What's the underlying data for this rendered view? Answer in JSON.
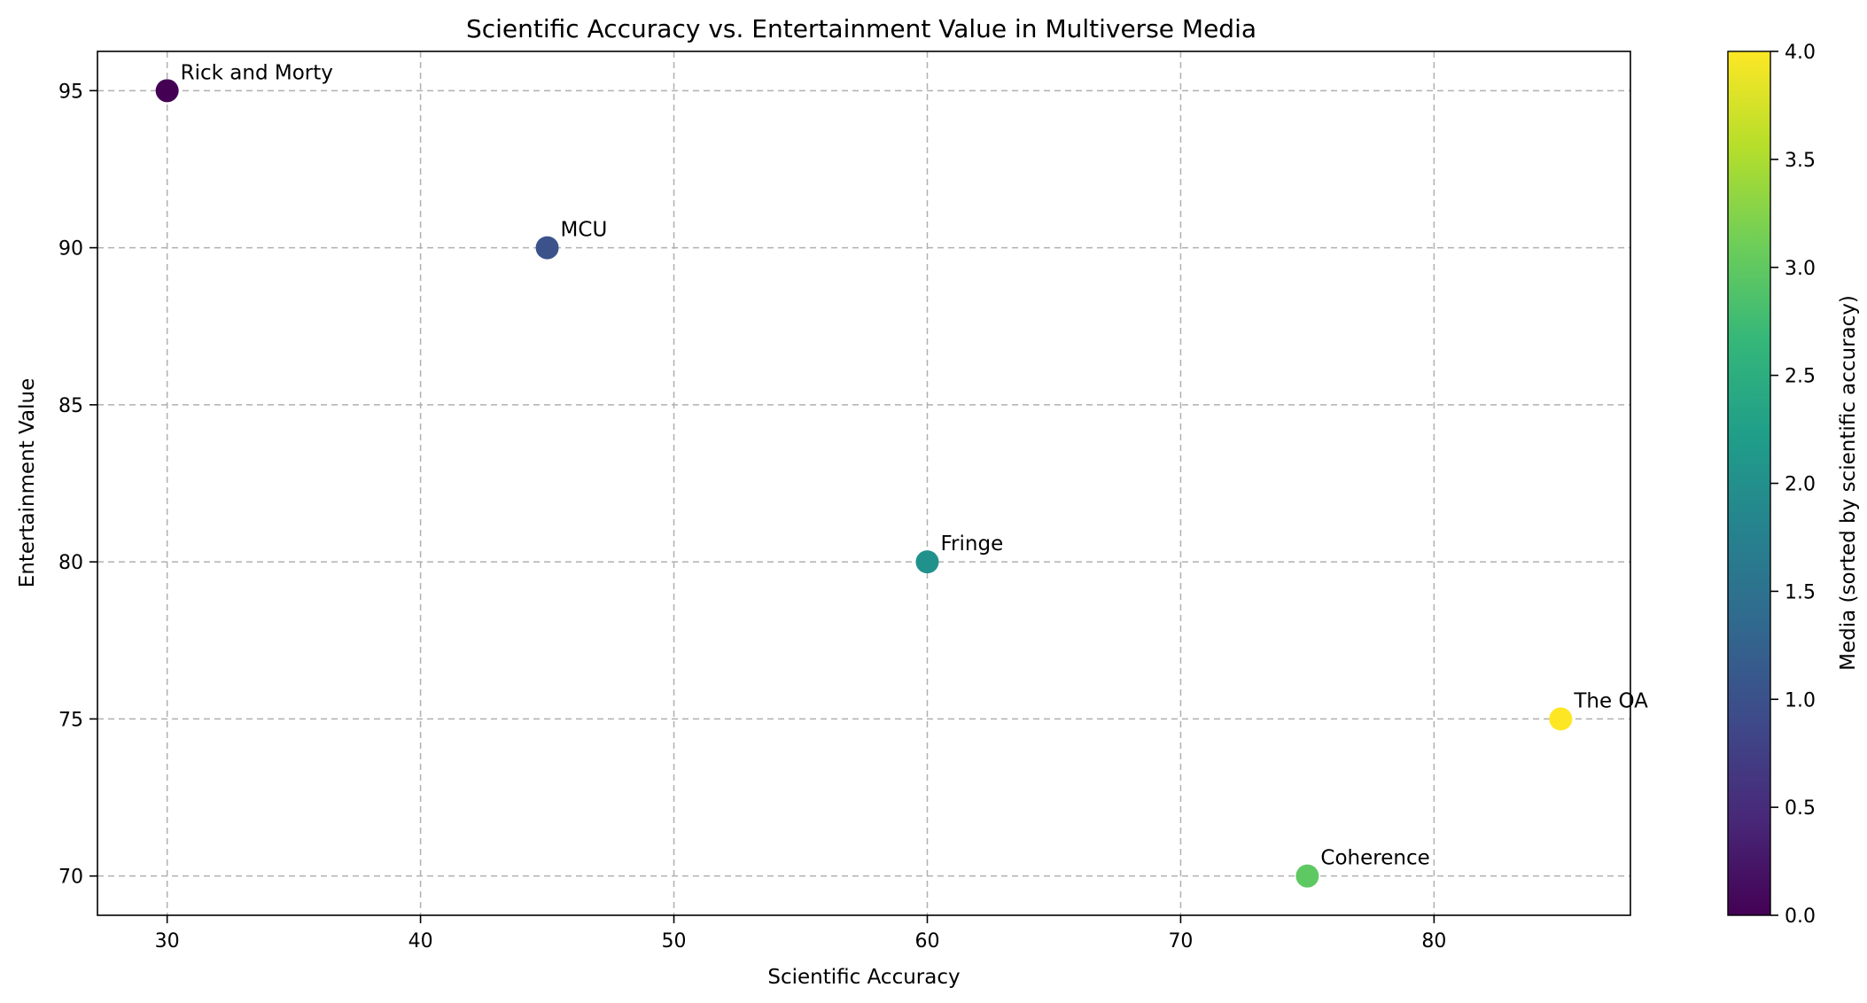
{
  "chart_data": {
    "type": "scatter",
    "title": "Scientific Accuracy vs. Entertainment Value in Multiverse Media",
    "xlabel": "Scientific Accuracy",
    "ylabel": "Entertainment Value",
    "xlim": [
      27.25,
      87.75
    ],
    "ylim": [
      68.75,
      96.25
    ],
    "xticks": [
      30,
      40,
      50,
      60,
      70,
      80
    ],
    "yticks": [
      70,
      75,
      80,
      85,
      90,
      95
    ],
    "grid": true,
    "grid_style": "dashed",
    "points": [
      {
        "label": "Rick and Morty",
        "x": 30,
        "y": 95,
        "color_value": 0,
        "color": "#440154"
      },
      {
        "label": "MCU",
        "x": 45,
        "y": 90,
        "color_value": 1,
        "color": "#3b528b"
      },
      {
        "label": "Fringe",
        "x": 60,
        "y": 80,
        "color_value": 2,
        "color": "#21918c"
      },
      {
        "label": "Coherence",
        "x": 75,
        "y": 70,
        "color_value": 3,
        "color": "#5ec962"
      },
      {
        "label": "The OA",
        "x": 85,
        "y": 75,
        "color_value": 4,
        "color": "#fde725"
      }
    ],
    "colorbar": {
      "label": "Media (sorted by scientific accuracy)",
      "colormap": "viridis",
      "range": [
        0.0,
        4.0
      ],
      "ticks": [
        "0.0",
        "0.5",
        "1.0",
        "1.5",
        "2.0",
        "2.5",
        "3.0",
        "3.5",
        "4.0"
      ],
      "stops": [
        "#440154",
        "#482878",
        "#3e4989",
        "#31688e",
        "#26828e",
        "#1f9e89",
        "#35b779",
        "#6ece58",
        "#b5de2b",
        "#fde725"
      ]
    }
  }
}
